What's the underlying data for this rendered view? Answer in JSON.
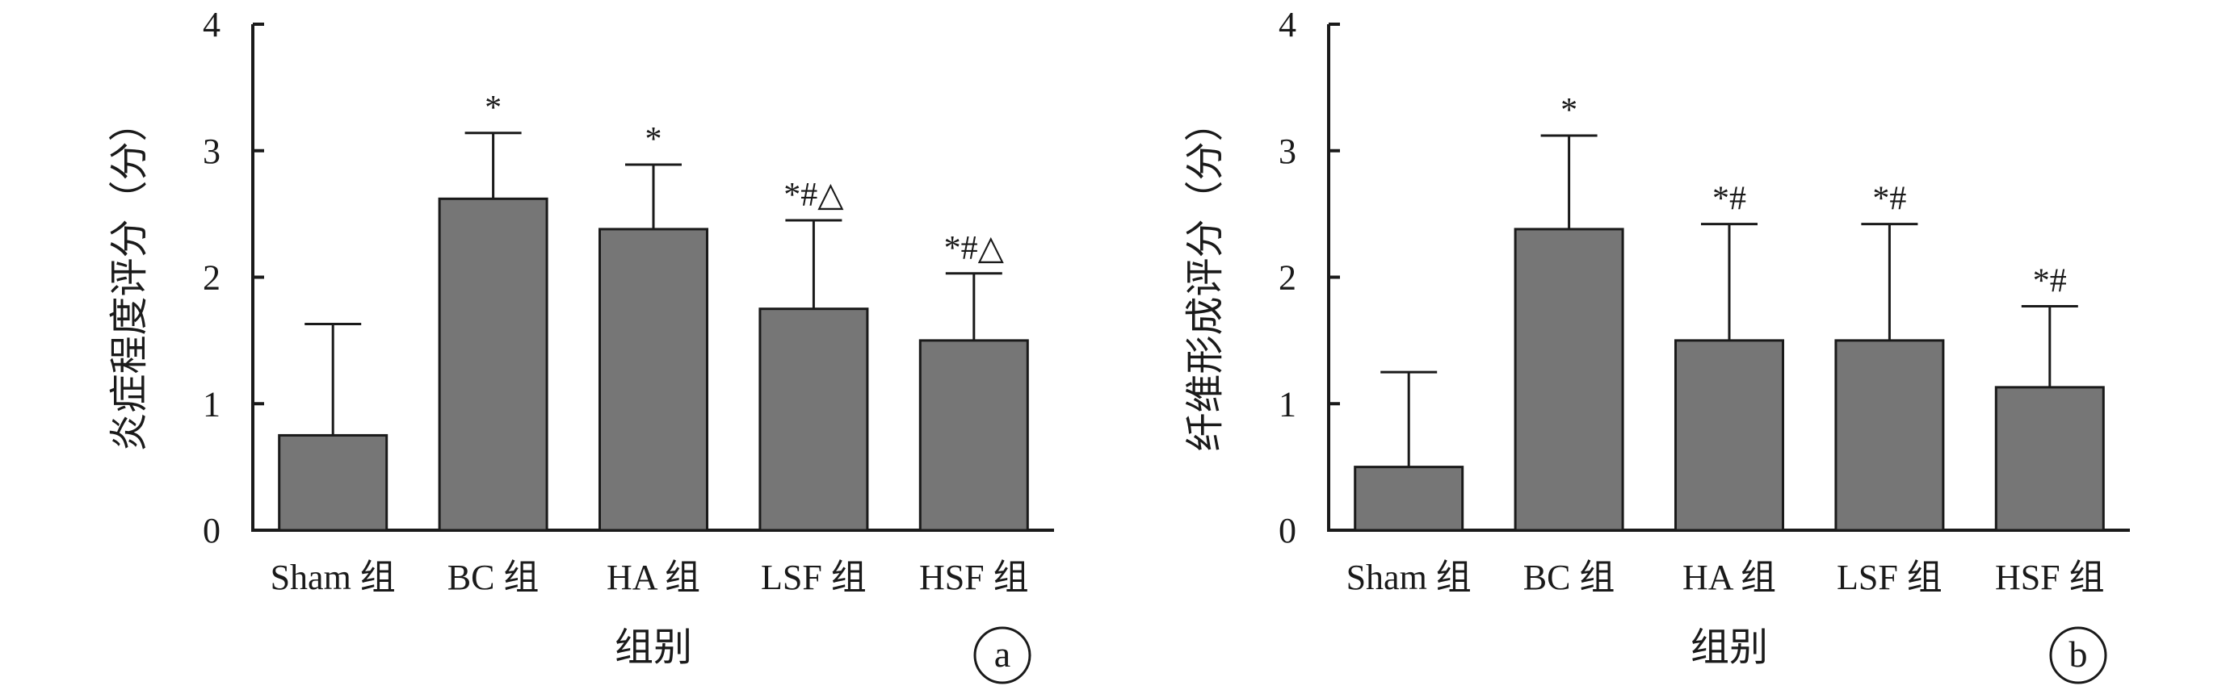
{
  "chart_data": [
    {
      "type": "bar",
      "panel_label": "a",
      "title": "",
      "xlabel": "组别",
      "ylabel": "炎症程度评分（分）",
      "ylim": [
        0,
        4
      ],
      "yticks": [
        "0",
        "1",
        "2",
        "3",
        "4"
      ],
      "categories": [
        "Sham 组",
        "BC 组",
        "HA 组",
        "LSF 组",
        "HSF 组"
      ],
      "values": [
        0.75,
        2.62,
        2.38,
        1.75,
        1.5
      ],
      "error_upper": [
        1.63,
        3.14,
        2.89,
        2.45,
        2.03
      ],
      "annotations": [
        "",
        "*",
        "*",
        "*#△",
        "*#△"
      ],
      "bar_color": "#767676",
      "grid": false,
      "legend": "none"
    },
    {
      "type": "bar",
      "panel_label": "b",
      "title": "",
      "xlabel": "组别",
      "ylabel": "纤维形成评分（分）",
      "ylim": [
        0,
        4
      ],
      "yticks": [
        "0",
        "1",
        "2",
        "3",
        "4"
      ],
      "categories": [
        "Sham 组",
        "BC 组",
        "HA 组",
        "LSF 组",
        "HSF 组"
      ],
      "values": [
        0.5,
        2.38,
        1.5,
        1.5,
        1.13
      ],
      "error_upper": [
        1.25,
        3.12,
        2.42,
        2.42,
        1.77
      ],
      "annotations": [
        "",
        "*",
        "*#",
        "*#",
        "*#"
      ],
      "bar_color": "#767676",
      "grid": false,
      "legend": "none"
    }
  ]
}
